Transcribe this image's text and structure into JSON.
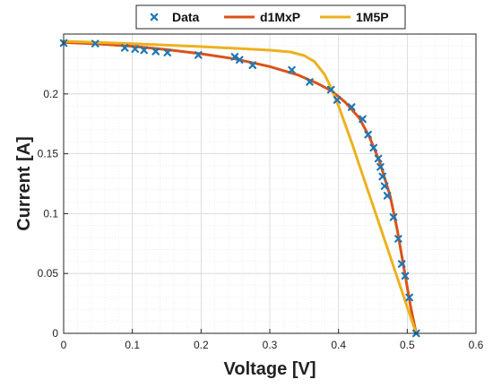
{
  "chart_data": {
    "type": "line",
    "title": "",
    "xlabel": "Voltage [V]",
    "ylabel": "Current [A]",
    "xlim": [
      0,
      0.6
    ],
    "ylim": [
      0,
      0.25
    ],
    "x_ticks": [
      "0",
      "0.1",
      "0.2",
      "0.3",
      "0.4",
      "0.5",
      "0.6"
    ],
    "y_ticks": [
      "0",
      "0.05",
      "0.1",
      "0.15",
      "0.2"
    ],
    "grid": true,
    "legend_position": "top",
    "series": [
      {
        "name": "Data",
        "kind": "scatter",
        "marker": "x",
        "color": "#1f77b4",
        "points": [
          [
            0.0,
            0.2425
          ],
          [
            0.046,
            0.242
          ],
          [
            0.089,
            0.2385
          ],
          [
            0.104,
            0.2375
          ],
          [
            0.117,
            0.2365
          ],
          [
            0.134,
            0.2355
          ],
          [
            0.151,
            0.2345
          ],
          [
            0.196,
            0.2325
          ],
          [
            0.249,
            0.231
          ],
          [
            0.256,
            0.2285
          ],
          [
            0.275,
            0.224
          ],
          [
            0.332,
            0.22
          ],
          [
            0.358,
            0.21
          ],
          [
            0.389,
            0.2035
          ],
          [
            0.398,
            0.195
          ],
          [
            0.419,
            0.189
          ],
          [
            0.435,
            0.179
          ],
          [
            0.443,
            0.166
          ],
          [
            0.451,
            0.155
          ],
          [
            0.458,
            0.146
          ],
          [
            0.461,
            0.139
          ],
          [
            0.464,
            0.131
          ],
          [
            0.467,
            0.123
          ],
          [
            0.471,
            0.115
          ],
          [
            0.48,
            0.097
          ],
          [
            0.487,
            0.079
          ],
          [
            0.492,
            0.058
          ],
          [
            0.497,
            0.048
          ],
          [
            0.503,
            0.03
          ],
          [
            0.513,
            0.0
          ]
        ]
      },
      {
        "name": "d1MxP",
        "kind": "line",
        "color": "#d95319",
        "points": [
          [
            0.0,
            0.243
          ],
          [
            0.05,
            0.2418
          ],
          [
            0.1,
            0.2398
          ],
          [
            0.15,
            0.237
          ],
          [
            0.2,
            0.2335
          ],
          [
            0.25,
            0.2292
          ],
          [
            0.3,
            0.2228
          ],
          [
            0.34,
            0.216
          ],
          [
            0.37,
            0.2085
          ],
          [
            0.39,
            0.2025
          ],
          [
            0.41,
            0.193
          ],
          [
            0.43,
            0.18
          ],
          [
            0.445,
            0.164
          ],
          [
            0.46,
            0.143
          ],
          [
            0.475,
            0.115
          ],
          [
            0.485,
            0.088
          ],
          [
            0.495,
            0.055
          ],
          [
            0.505,
            0.022
          ],
          [
            0.513,
            0.0
          ]
        ]
      },
      {
        "name": "1M5P",
        "kind": "line",
        "color": "#edb120",
        "points": [
          [
            0.0,
            0.244
          ],
          [
            0.1,
            0.242
          ],
          [
            0.2,
            0.2395
          ],
          [
            0.3,
            0.2365
          ],
          [
            0.33,
            0.235
          ],
          [
            0.35,
            0.232
          ],
          [
            0.365,
            0.227
          ],
          [
            0.38,
            0.216
          ],
          [
            0.39,
            0.204
          ],
          [
            0.4,
            0.19
          ],
          [
            0.42,
            0.158
          ],
          [
            0.44,
            0.124
          ],
          [
            0.46,
            0.09
          ],
          [
            0.48,
            0.056
          ],
          [
            0.5,
            0.022
          ],
          [
            0.513,
            0.0
          ]
        ]
      }
    ]
  }
}
